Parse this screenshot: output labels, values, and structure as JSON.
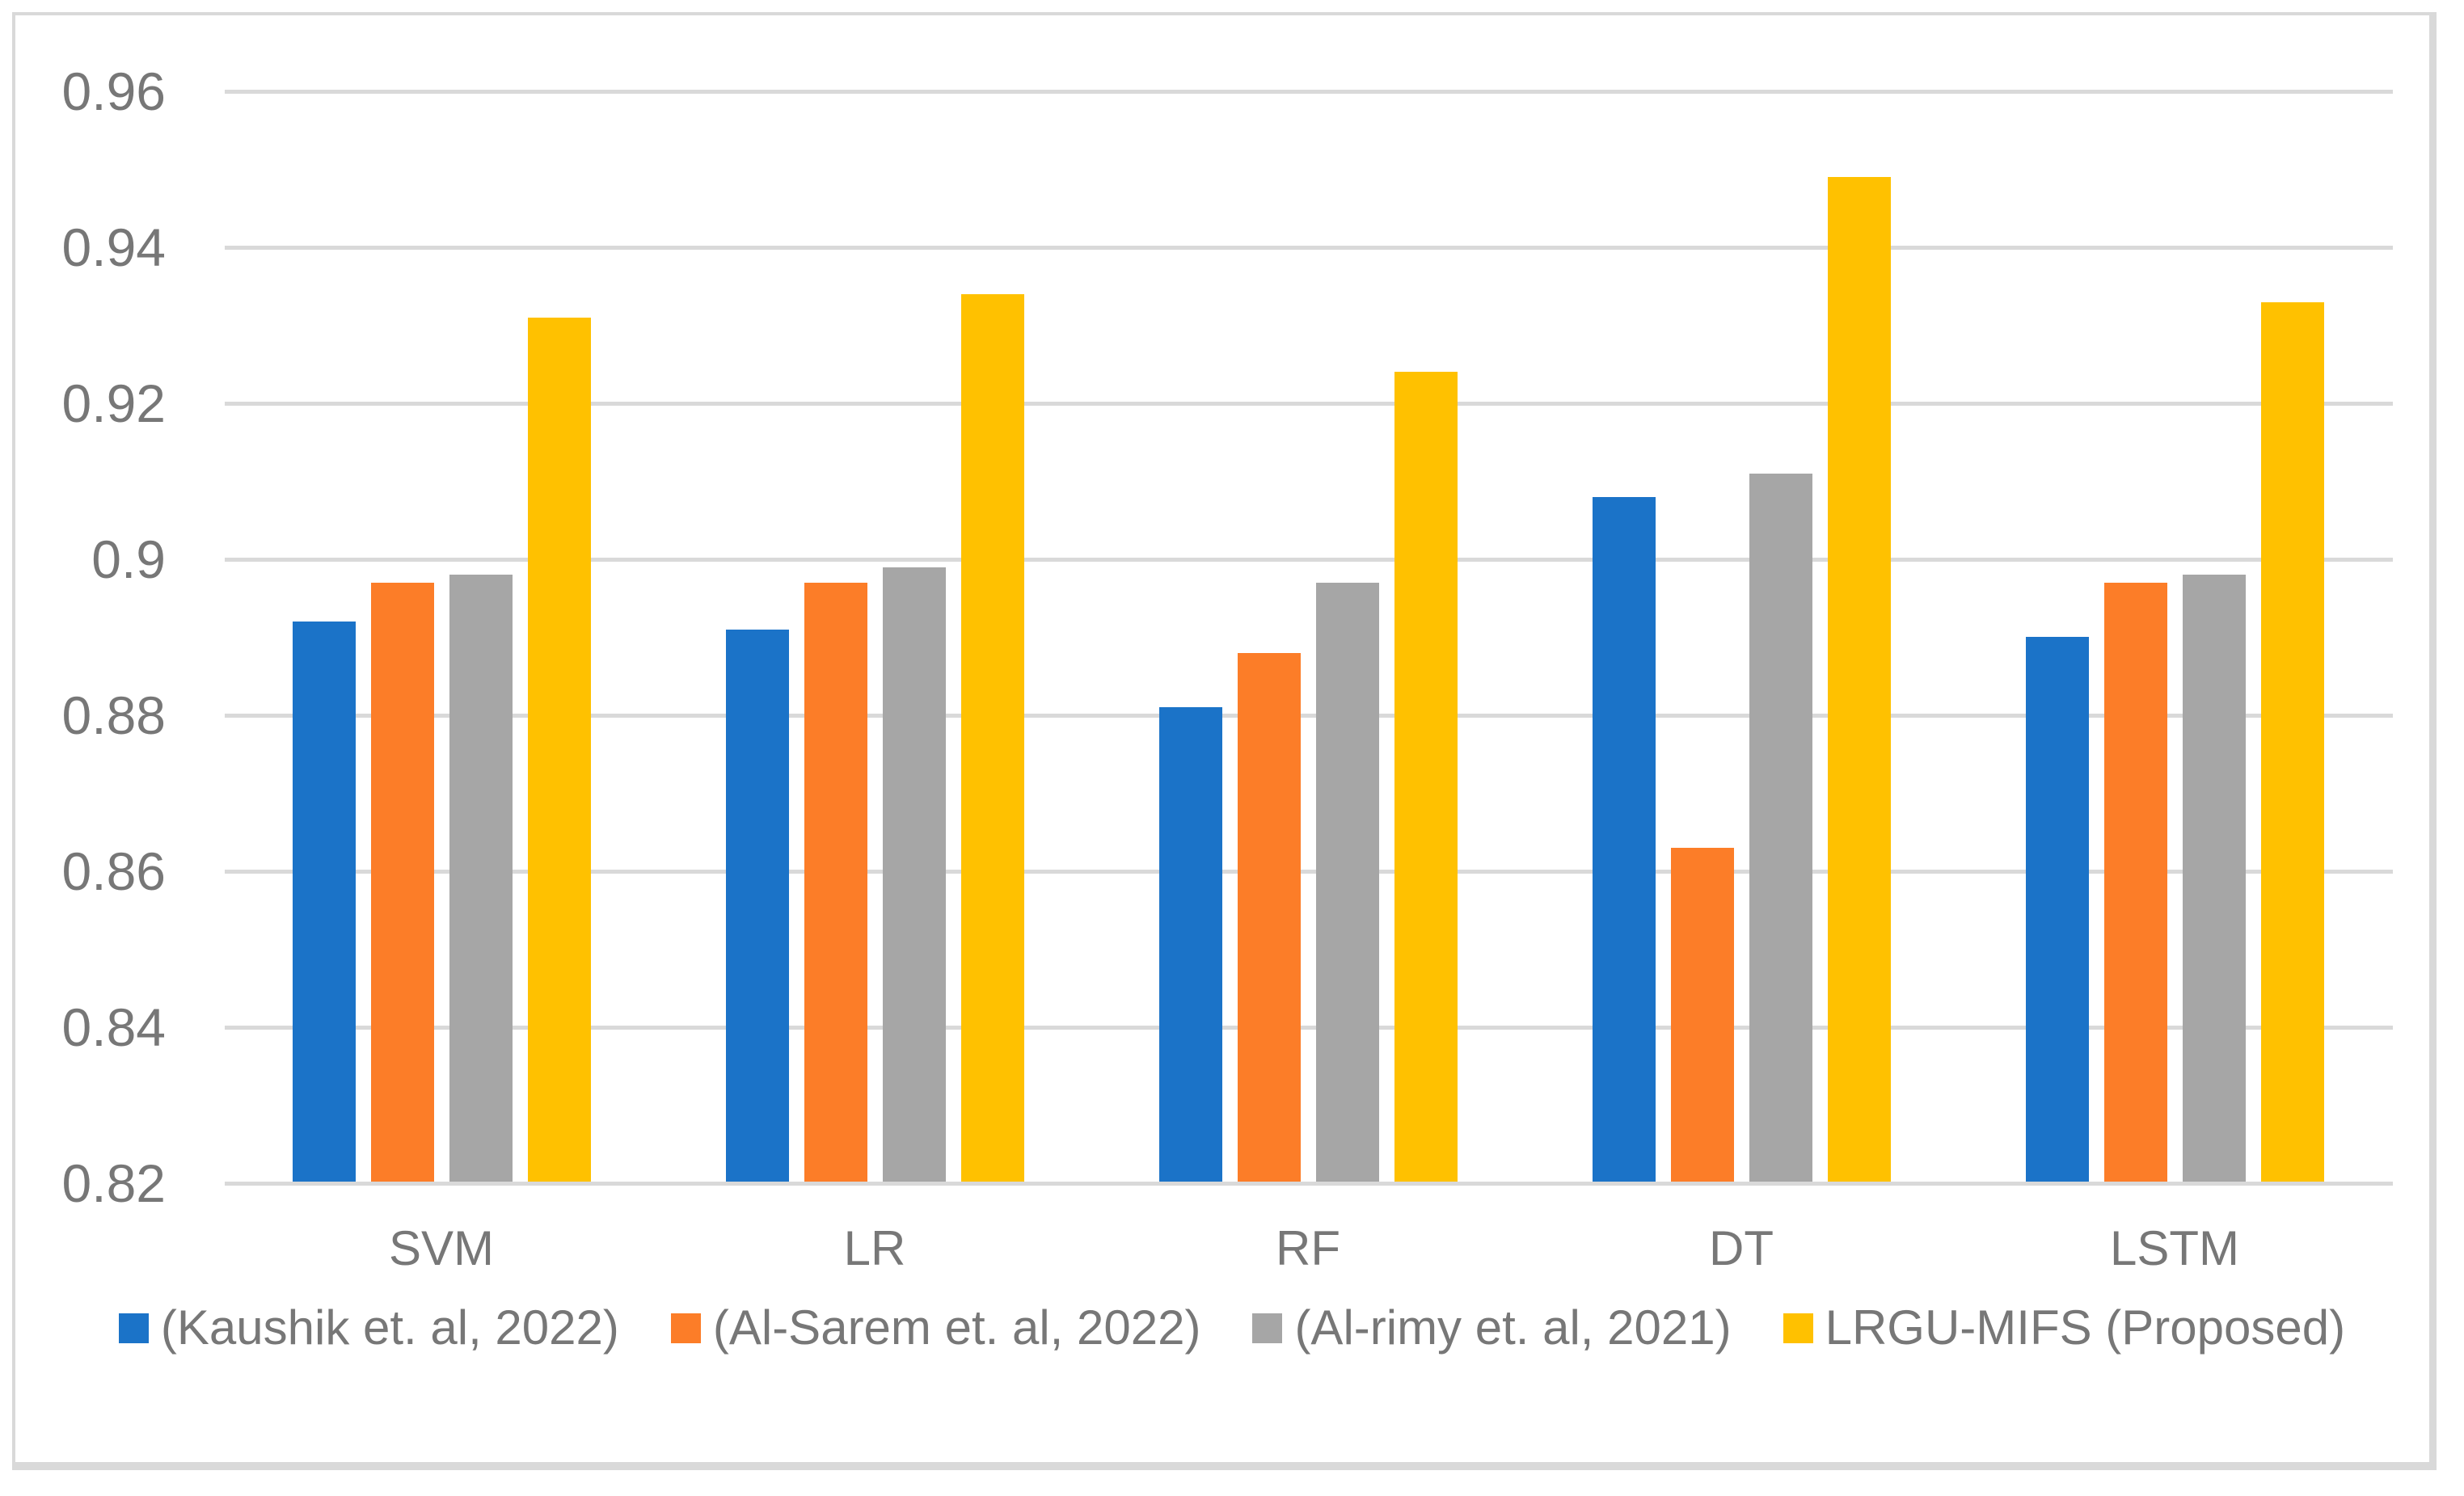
{
  "chart_data": {
    "type": "bar",
    "title": "",
    "xlabel": "",
    "ylabel": "",
    "categories": [
      "SVM",
      "LR",
      "RF",
      "DT",
      "LSTM"
    ],
    "series": [
      {
        "name": "(Kaushik et. al, 2022)",
        "color": "#1B73C8",
        "values": [
          0.892,
          0.891,
          0.881,
          0.908,
          0.89
        ]
      },
      {
        "name": "(Al-Sarem et. al, 2022)",
        "color": "#FC7D28",
        "values": [
          0.897,
          0.897,
          0.888,
          0.863,
          0.897
        ]
      },
      {
        "name": "(Al-rimy et. al, 2021)",
        "color": "#A6A6A6",
        "values": [
          0.898,
          0.899,
          0.897,
          0.911,
          0.898
        ]
      },
      {
        "name": "LRGU-MIFS (Proposed)",
        "color": "#FFC100",
        "values": [
          0.931,
          0.934,
          0.924,
          0.949,
          0.933
        ]
      }
    ],
    "ylim": [
      0.82,
      0.96
    ],
    "yticks": [
      {
        "label": "0.96",
        "value": 0.96
      },
      {
        "label": "0.94",
        "value": 0.94
      },
      {
        "label": "0.92",
        "value": 0.92
      },
      {
        "label": "0.9",
        "value": 0.9
      },
      {
        "label": "0.88",
        "value": 0.88
      },
      {
        "label": "0.86",
        "value": 0.86
      },
      {
        "label": "0.84",
        "value": 0.84
      },
      {
        "label": "0.82",
        "value": 0.82
      }
    ],
    "grid": true,
    "legend_position": "bottom",
    "colors": {
      "gridline": "#D9D9D9",
      "frame_border": "#D9D9D9",
      "axis_text": "#777777",
      "background": "#FFFFFF"
    }
  }
}
